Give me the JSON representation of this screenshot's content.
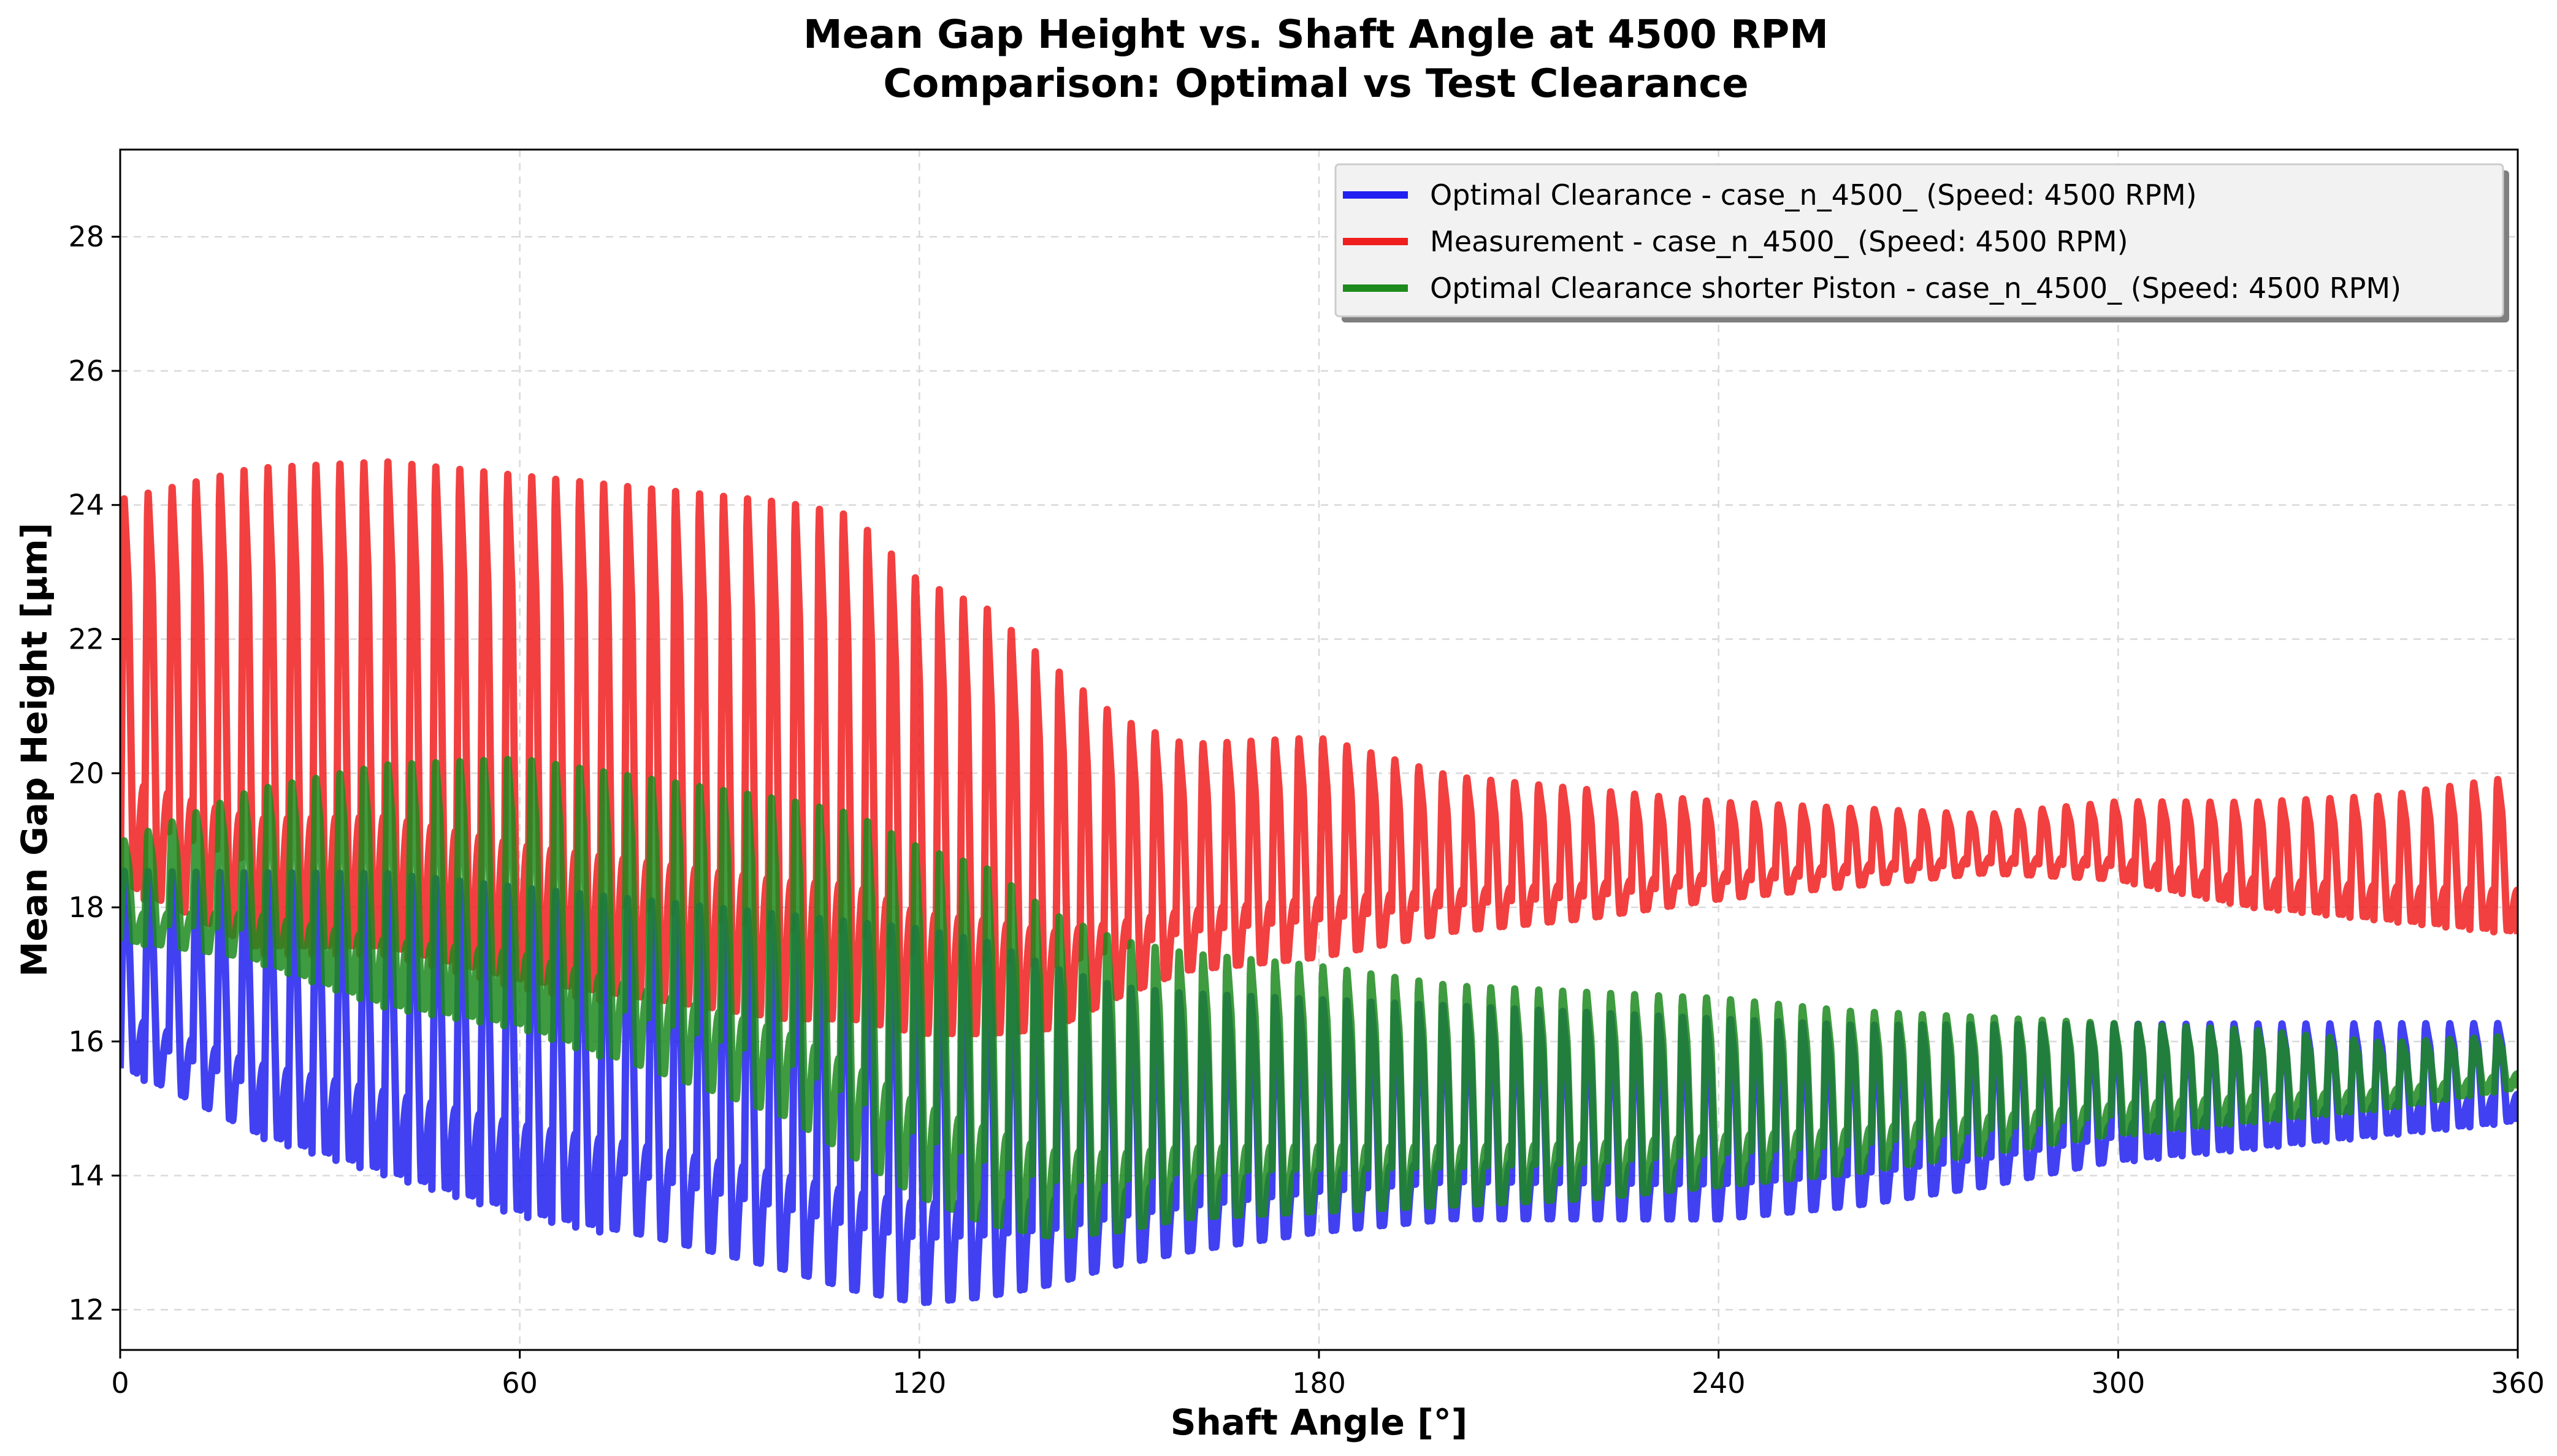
{
  "chart_data": {
    "type": "line",
    "title": "Mean Gap Height vs. Shaft Angle at 4500 RPM",
    "subtitle": "Comparison: Optimal vs Test Clearance",
    "xlabel": "Shaft Angle [°]",
    "ylabel": "Mean Gap Height [µm]",
    "xlim": [
      0,
      360
    ],
    "ylim": [
      11.4,
      29.3
    ],
    "xticks": [
      0,
      60,
      120,
      180,
      240,
      300,
      360
    ],
    "yticks": [
      12,
      14,
      16,
      18,
      20,
      22,
      24,
      26,
      28
    ],
    "grid": true,
    "legend_position": "top-right",
    "oscillation_period_deg": 3.6,
    "series": [
      {
        "name": "Optimal Clearance - case_n_4500_ (Speed: 4500 RPM)",
        "color": "#2020f0",
        "envelope": {
          "x": [
            0,
            20,
            40,
            60,
            80,
            100,
            110,
            120,
            130,
            140,
            150,
            160,
            180,
            200,
            220,
            240,
            260,
            280,
            300,
            320,
            340,
            360
          ],
          "upper": [
            18.6,
            18.6,
            18.6,
            18.4,
            18.2,
            18.0,
            17.9,
            17.8,
            17.6,
            17.2,
            16.9,
            16.8,
            16.7,
            16.6,
            16.5,
            16.4,
            16.3,
            16.3,
            16.3,
            16.3,
            16.3,
            16.3
          ],
          "lower": [
            15.6,
            14.6,
            14.0,
            13.4,
            13.0,
            12.5,
            12.2,
            12.0,
            12.1,
            12.3,
            12.6,
            12.8,
            13.1,
            13.3,
            13.3,
            13.3,
            13.5,
            13.8,
            14.2,
            14.4,
            14.6,
            14.8
          ]
        }
      },
      {
        "name": "Measurement - case_n_4500_ (Speed: 4500 RPM)",
        "color": "#f01e1e",
        "envelope": {
          "x": [
            0,
            20,
            40,
            60,
            80,
            100,
            110,
            120,
            130,
            140,
            150,
            160,
            180,
            200,
            220,
            240,
            260,
            280,
            300,
            320,
            340,
            360
          ],
          "upper": [
            24.2,
            24.7,
            24.8,
            24.6,
            24.4,
            24.2,
            24.0,
            23.0,
            22.6,
            21.7,
            20.9,
            20.5,
            20.6,
            20.0,
            19.8,
            19.6,
            19.5,
            19.4,
            19.6,
            19.6,
            19.7,
            20.0
          ],
          "lower": [
            18.3,
            17.3,
            17.3,
            16.8,
            16.5,
            16.2,
            16.2,
            16.0,
            16.0,
            16.1,
            16.6,
            17.0,
            17.2,
            17.6,
            17.8,
            18.1,
            18.3,
            18.5,
            18.4,
            18.0,
            17.8,
            17.6
          ]
        }
      },
      {
        "name": "Optimal Clearance shorter Piston - case_n_4500_ (Speed: 4500 RPM)",
        "color": "#1d8a1d",
        "envelope": {
          "x": [
            0,
            20,
            40,
            60,
            80,
            100,
            110,
            120,
            130,
            140,
            150,
            160,
            180,
            200,
            220,
            240,
            260,
            280,
            300,
            320,
            340,
            360
          ],
          "upper": [
            19.0,
            19.8,
            20.2,
            20.3,
            20.0,
            19.7,
            19.5,
            19.0,
            18.7,
            18.0,
            17.6,
            17.4,
            17.2,
            16.9,
            16.8,
            16.7,
            16.5,
            16.4,
            16.3,
            16.2,
            16.0,
            16.1
          ],
          "lower": [
            17.5,
            17.2,
            16.5,
            16.2,
            15.5,
            14.8,
            14.2,
            13.6,
            13.2,
            13.0,
            13.1,
            13.3,
            13.4,
            13.5,
            13.6,
            13.8,
            14.0,
            14.3,
            14.6,
            14.8,
            15.0,
            15.3
          ]
        }
      }
    ]
  }
}
